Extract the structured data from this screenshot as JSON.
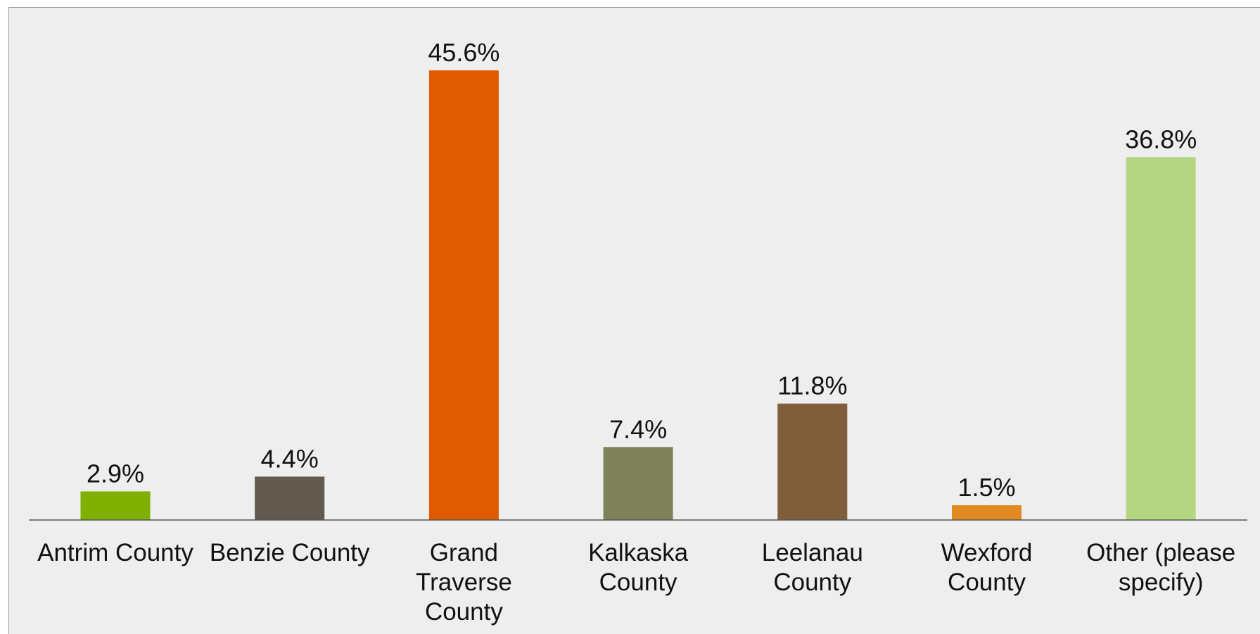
{
  "chart_data": {
    "type": "bar",
    "title": "",
    "xlabel": "",
    "ylabel": "",
    "ylim": [
      0,
      50
    ],
    "grid": false,
    "legend": "none",
    "categories": [
      [
        "Antrim County"
      ],
      [
        "Benzie County"
      ],
      [
        "Grand",
        "Traverse",
        "County"
      ],
      [
        "Kalkaska",
        "County"
      ],
      [
        "Leelanau",
        "County"
      ],
      [
        "Wexford",
        "County"
      ],
      [
        "Other (please",
        "specify)"
      ]
    ],
    "values": [
      2.9,
      4.4,
      45.6,
      7.4,
      11.8,
      1.5,
      36.8
    ],
    "value_labels": [
      "2.9%",
      "4.4%",
      "45.6%",
      "7.4%",
      "11.8%",
      "1.5%",
      "36.8%"
    ],
    "colors": [
      "#80b000",
      "#625a4e",
      "#e05a00",
      "#7e8259",
      "#805d3b",
      "#e28a22",
      "#b4d683"
    ]
  }
}
